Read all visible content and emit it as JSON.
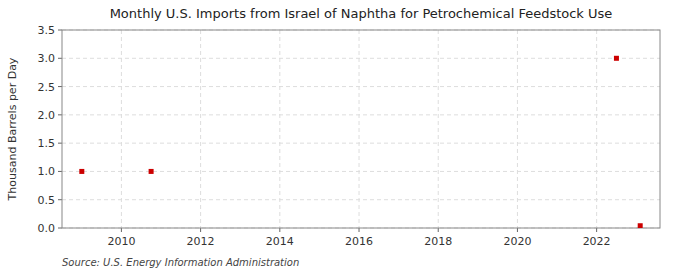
{
  "chart_data": {
    "type": "scatter",
    "title": "Monthly U.S. Imports from Israel of Naphtha for Petrochemical Feedstock Use",
    "ylabel": "Thousand Barrels per Day",
    "source": "Source: U.S. Energy Information Administration",
    "x": [
      2009.0,
      2010.75,
      2022.5,
      2023.1
    ],
    "values": [
      1.0,
      1.0,
      3.0,
      0.04
    ],
    "color": "#cc0000",
    "marker": "square",
    "xlim": [
      2008.5,
      2023.6
    ],
    "ylim": [
      0.0,
      3.5
    ],
    "xticks": [
      2010,
      2012,
      2014,
      2016,
      2018,
      2020,
      2022
    ],
    "yticks": [
      {
        "value": 0.0,
        "label": "0.0"
      },
      0.5,
      {
        "value": 1.0,
        "label": "1.0"
      },
      1.5,
      {
        "value": 2.0,
        "label": "2.0"
      },
      2.5,
      {
        "value": 3.0,
        "label": "3.0"
      },
      3.5
    ],
    "grid": true
  }
}
